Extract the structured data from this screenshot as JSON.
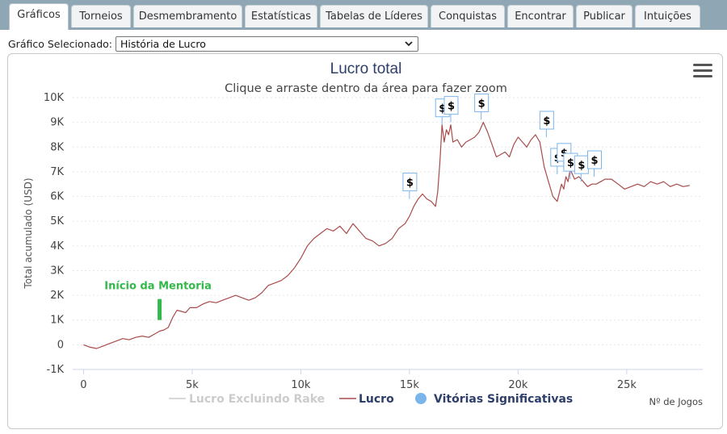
{
  "tabs": [
    {
      "label": "Gráficos",
      "active": true
    },
    {
      "label": "Torneios"
    },
    {
      "label": "Desmembramento"
    },
    {
      "label": "Estatísticas"
    },
    {
      "label": "Tabelas de Líderes"
    },
    {
      "label": "Conquistas"
    },
    {
      "label": "Encontrar"
    },
    {
      "label": "Publicar"
    },
    {
      "label": "Intuições"
    }
  ],
  "selector": {
    "label": "Gráfico Selecionado:",
    "value": "História de Lucro"
  },
  "colors": {
    "line": "#a94b4b",
    "accent_green": "#33b84a",
    "marker_blue": "#7cb5ec",
    "title": "#2e3e6a"
  },
  "chart_data": {
    "type": "line",
    "title": "Lucro total",
    "subtitle": "Clique e arraste dentro da área para fazer zoom",
    "ylabel": "Total acumulado (USD)",
    "xlabel": "Nº de Jogos",
    "xlim": [
      -500,
      28500
    ],
    "ylim": [
      -1000,
      10000
    ],
    "x_ticks": [
      0,
      5000,
      10000,
      15000,
      20000,
      25000
    ],
    "x_tick_labels": [
      "0",
      "5k",
      "10k",
      "15k",
      "20k",
      "25k"
    ],
    "y_ticks": [
      -1000,
      0,
      1000,
      2000,
      3000,
      4000,
      5000,
      6000,
      7000,
      8000,
      9000,
      10000
    ],
    "y_tick_labels": [
      "-1K",
      "0",
      "1K",
      "2K",
      "3K",
      "4K",
      "5K",
      "6K",
      "7K",
      "8K",
      "9K",
      "10K"
    ],
    "grid": "horizontal-dashed",
    "legend_position": "bottom-center",
    "legend": [
      {
        "name": "Lucro Excluindo Rake",
        "visible": false
      },
      {
        "name": "Lucro",
        "visible": true
      },
      {
        "name": "Vitórias Significativas",
        "visible": true
      }
    ],
    "series": [
      {
        "name": "Lucro",
        "x": [
          0,
          300,
          600,
          900,
          1200,
          1500,
          1800,
          2100,
          2400,
          2700,
          3000,
          3300,
          3500,
          3700,
          3900,
          4100,
          4300,
          4500,
          4700,
          4900,
          5200,
          5500,
          5800,
          6100,
          6400,
          6700,
          7000,
          7300,
          7600,
          7900,
          8200,
          8500,
          8800,
          9100,
          9400,
          9700,
          10000,
          10300,
          10600,
          10900,
          11200,
          11500,
          11800,
          12100,
          12400,
          12700,
          13000,
          13300,
          13600,
          13900,
          14200,
          14500,
          14800,
          15000,
          15200,
          15400,
          15600,
          15800,
          16000,
          16200,
          16300,
          16400,
          16500,
          16600,
          16700,
          16800,
          16900,
          17000,
          17200,
          17400,
          17600,
          17800,
          18000,
          18200,
          18400,
          18600,
          18800,
          19000,
          19200,
          19400,
          19600,
          19800,
          20000,
          20200,
          20400,
          20600,
          20800,
          21000,
          21200,
          21400,
          21600,
          21800,
          22000,
          22100,
          22200,
          22300,
          22400,
          22500,
          22600,
          22800,
          23000,
          23200,
          23400,
          23600,
          23800,
          24000,
          24300,
          24600,
          24900,
          25200,
          25500,
          25800,
          26100,
          26400,
          26700,
          27000,
          27300,
          27600,
          27900
        ],
        "values": [
          0,
          -100,
          -150,
          -50,
          50,
          150,
          250,
          200,
          300,
          350,
          300,
          450,
          550,
          600,
          700,
          1100,
          1400,
          1350,
          1300,
          1500,
          1500,
          1650,
          1750,
          1700,
          1800,
          1900,
          2000,
          1900,
          1800,
          1900,
          2100,
          2400,
          2500,
          2600,
          2800,
          3100,
          3500,
          4000,
          4300,
          4500,
          4700,
          4600,
          4800,
          4500,
          4900,
          4600,
          4300,
          4200,
          4000,
          4100,
          4300,
          4700,
          4900,
          5200,
          5600,
          5900,
          6100,
          5900,
          5800,
          5600,
          6200,
          7400,
          8900,
          8200,
          8700,
          8500,
          8900,
          8200,
          8300,
          8000,
          8200,
          8300,
          8400,
          8600,
          9000,
          8600,
          8100,
          7600,
          7700,
          7800,
          7600,
          8100,
          8400,
          8200,
          8000,
          8300,
          8500,
          8200,
          7200,
          6600,
          6000,
          5800,
          6500,
          6300,
          6800,
          6600,
          7100,
          6900,
          6700,
          6800,
          6600,
          6400,
          6500,
          6500,
          6600,
          6700,
          6700,
          6500,
          6300,
          6400,
          6500,
          6400,
          6600,
          6500,
          6600,
          6400,
          6500,
          6400,
          6450
        ]
      }
    ],
    "significant_wins": [
      {
        "x": 15000,
        "y": 5900,
        "label": "$"
      },
      {
        "x": 16500,
        "y": 8900,
        "label": "$"
      },
      {
        "x": 16900,
        "y": 9000,
        "label": "$"
      },
      {
        "x": 18300,
        "y": 9100,
        "label": "$"
      },
      {
        "x": 21300,
        "y": 8400,
        "label": "$"
      },
      {
        "x": 21800,
        "y": 6900,
        "label": "$"
      },
      {
        "x": 22100,
        "y": 7100,
        "label": "$"
      },
      {
        "x": 22400,
        "y": 6700,
        "label": "$"
      },
      {
        "x": 22900,
        "y": 6600,
        "label": "$"
      },
      {
        "x": 23500,
        "y": 6800,
        "label": "$"
      }
    ],
    "annotation": {
      "text": "Início da Mentoria",
      "x": 3500,
      "y_from": 1000,
      "y_to": 1850
    }
  }
}
